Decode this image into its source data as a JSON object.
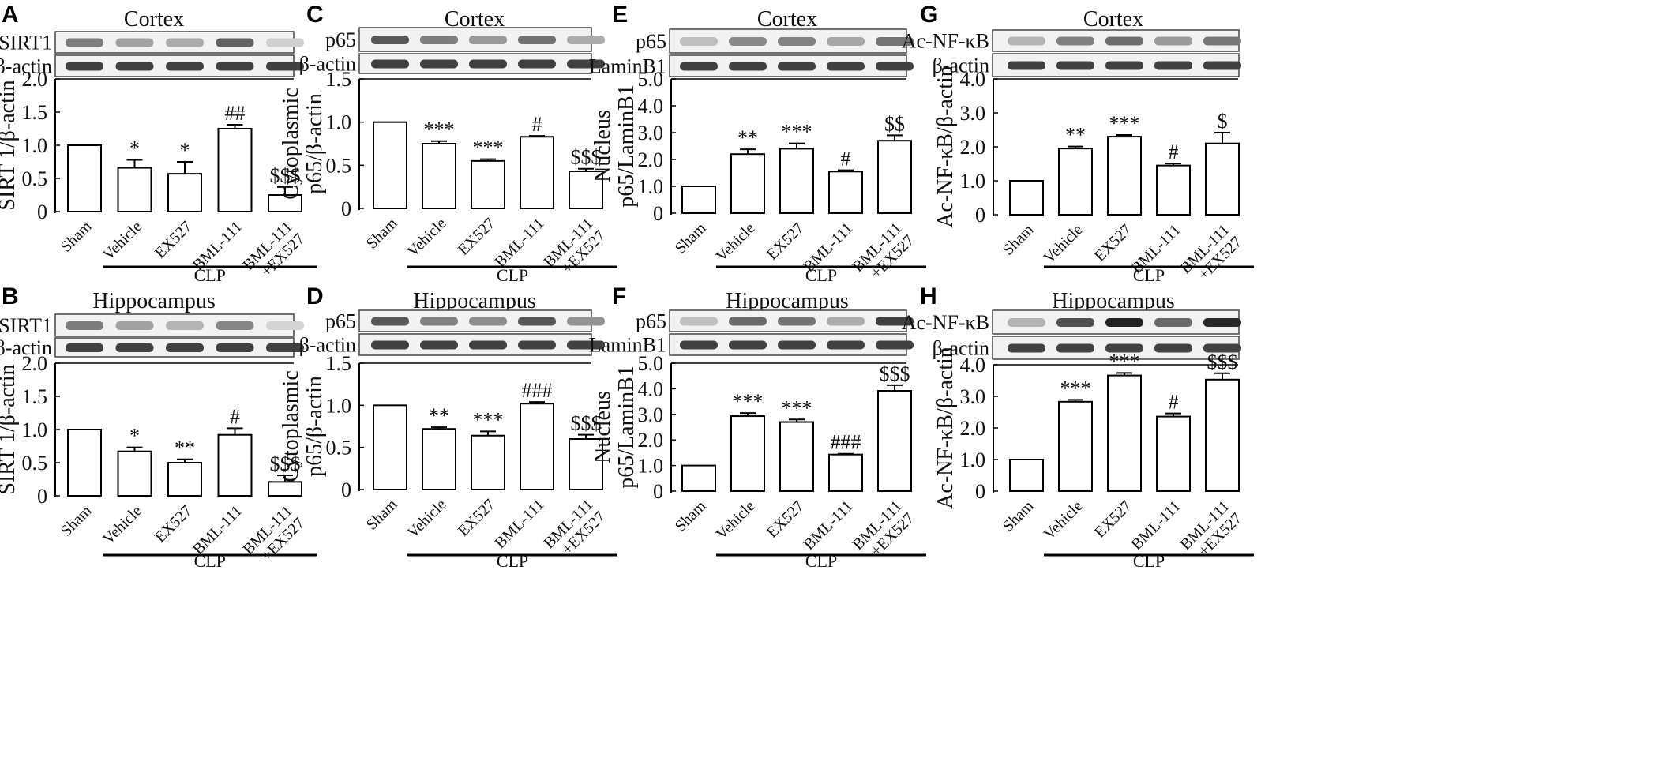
{
  "figure": {
    "categories": [
      "Sham",
      "Vehicle",
      "EX527",
      "BML-111",
      "BML-111\n+EX527"
    ],
    "group_label": "CLP",
    "bar_color": "#ffffff",
    "stroke_color": "#000000"
  },
  "chart_data": [
    {
      "panel": "A",
      "type": "bar",
      "title": "Cortex",
      "blot_labels": [
        "SIRT1",
        "β-actin"
      ],
      "ylabel": "SIRT 1/β-actin",
      "ylim": [
        0,
        2.0
      ],
      "yticks": [
        "0",
        "0.5",
        "1.0",
        "1.5",
        "2.0"
      ],
      "categories": [
        "Sham",
        "Vehicle",
        "EX527",
        "BML-111",
        "BML-111\n+EX527"
      ],
      "values": [
        1.0,
        0.66,
        0.57,
        1.25,
        0.25
      ],
      "errors": [
        0,
        0.12,
        0.18,
        0.06,
        0.12
      ],
      "annotations": [
        "",
        "*",
        "*",
        "##",
        "$$$"
      ],
      "xlabel": "CLP"
    },
    {
      "panel": "B",
      "type": "bar",
      "title": "Hippocampus",
      "blot_labels": [
        "SIRT1",
        "β-actin"
      ],
      "ylabel": "SIRT 1/β-actin",
      "ylim": [
        0,
        2.0
      ],
      "yticks": [
        "0",
        "0.5",
        "1.0",
        "1.5",
        "2.0"
      ],
      "categories": [
        "Sham",
        "Vehicle",
        "EX527",
        "BML-111",
        "BML-111\n+EX527"
      ],
      "values": [
        1.0,
        0.67,
        0.5,
        0.92,
        0.21
      ],
      "errors": [
        0,
        0.06,
        0.05,
        0.1,
        0.1
      ],
      "annotations": [
        "",
        "*",
        "**",
        "#",
        "$$$"
      ],
      "xlabel": "CLP"
    },
    {
      "panel": "C",
      "type": "bar",
      "title": "Cortex",
      "blot_labels": [
        "p65",
        "β-actin"
      ],
      "ylabel": "Cytoplasmic\np65/β-actin",
      "ylim": [
        0,
        1.5
      ],
      "yticks": [
        "0",
        "0.5",
        "1.0",
        "1.5"
      ],
      "categories": [
        "Sham",
        "Vehicle",
        "EX527",
        "BML-111",
        "BML-111\n+EX527"
      ],
      "values": [
        1.0,
        0.75,
        0.55,
        0.83,
        0.43
      ],
      "errors": [
        0,
        0.03,
        0.02,
        0.01,
        0.03
      ],
      "annotations": [
        "",
        "***",
        "***",
        "#",
        "$$$"
      ],
      "xlabel": "CLP"
    },
    {
      "panel": "D",
      "type": "bar",
      "title": "Hippocampus",
      "blot_labels": [
        "p65",
        "β-actin"
      ],
      "ylabel": "Cytoplasmic\np65/β-actin",
      "ylim": [
        0,
        1.5
      ],
      "yticks": [
        "0",
        "0.5",
        "1.0",
        "1.5"
      ],
      "categories": [
        "Sham",
        "Vehicle",
        "EX527",
        "BML-111",
        "BML-111\n+EX527"
      ],
      "values": [
        1.0,
        0.72,
        0.64,
        1.02,
        0.6
      ],
      "errors": [
        0,
        0.02,
        0.05,
        0.02,
        0.05
      ],
      "annotations": [
        "",
        "**",
        "***",
        "###",
        "$$$"
      ],
      "xlabel": "CLP"
    },
    {
      "panel": "E",
      "type": "bar",
      "title": "Cortex",
      "blot_labels": [
        "p65",
        "LaminB1"
      ],
      "ylabel": "Nucleus\np65/LaminB1",
      "ylim": [
        0,
        5.0
      ],
      "yticks": [
        "0",
        "1.0",
        "2.0",
        "3.0",
        "4.0",
        "5.0"
      ],
      "categories": [
        "Sham",
        "Vehicle",
        "EX527",
        "BML-111",
        "BML-111\n+EX527"
      ],
      "values": [
        1.0,
        2.2,
        2.4,
        1.55,
        2.7
      ],
      "errors": [
        0,
        0.18,
        0.2,
        0.05,
        0.2
      ],
      "annotations": [
        "",
        "**",
        "***",
        "#",
        "$$"
      ],
      "xlabel": "CLP"
    },
    {
      "panel": "F",
      "type": "bar",
      "title": "Hippocampus",
      "blot_labels": [
        "p65",
        "LaminB1"
      ],
      "ylabel": "Nucleus\np65/LaminB1",
      "ylim": [
        0,
        5.0
      ],
      "yticks": [
        "0",
        "1.0",
        "2.0",
        "3.0",
        "4.0",
        "5.0"
      ],
      "categories": [
        "Sham",
        "Vehicle",
        "EX527",
        "BML-111",
        "BML-111\n+EX527"
      ],
      "values": [
        1.0,
        2.93,
        2.7,
        1.43,
        3.92
      ],
      "errors": [
        0,
        0.12,
        0.1,
        0.03,
        0.22
      ],
      "annotations": [
        "",
        "***",
        "***",
        "###",
        "$$$"
      ],
      "xlabel": "CLP"
    },
    {
      "panel": "G",
      "type": "bar",
      "title": "Cortex",
      "blot_labels": [
        "Ac-NF-κB",
        "β-actin"
      ],
      "ylabel": "Ac-NF-κB/β-actin",
      "ylim": [
        0,
        4.0
      ],
      "yticks": [
        "0",
        "1.0",
        "2.0",
        "3.0",
        "4.0"
      ],
      "categories": [
        "Sham",
        "Vehicle",
        "EX527",
        "BML-111",
        "BML-111\n+EX527"
      ],
      "values": [
        1.0,
        1.95,
        2.3,
        1.45,
        2.1
      ],
      "errors": [
        0,
        0.06,
        0.05,
        0.06,
        0.32
      ],
      "annotations": [
        "",
        "**",
        "***",
        "#",
        "$"
      ],
      "xlabel": "CLP"
    },
    {
      "panel": "H",
      "type": "bar",
      "title": "Hippocampus",
      "blot_labels": [
        "Ac-NF-κB",
        "β-actin"
      ],
      "ylabel": "Ac-NF-κB/β-actin",
      "ylim": [
        0,
        4.0
      ],
      "yticks": [
        "0",
        "1.0",
        "2.0",
        "3.0",
        "4.0"
      ],
      "categories": [
        "Sham",
        "Vehicle",
        "EX527",
        "BML-111",
        "BML-111\n+EX527"
      ],
      "values": [
        1.0,
        2.83,
        3.66,
        2.36,
        3.53
      ],
      "errors": [
        0,
        0.06,
        0.08,
        0.1,
        0.2
      ],
      "annotations": [
        "",
        "***",
        "***",
        "#",
        "$$$"
      ],
      "xlabel": "CLP"
    }
  ]
}
